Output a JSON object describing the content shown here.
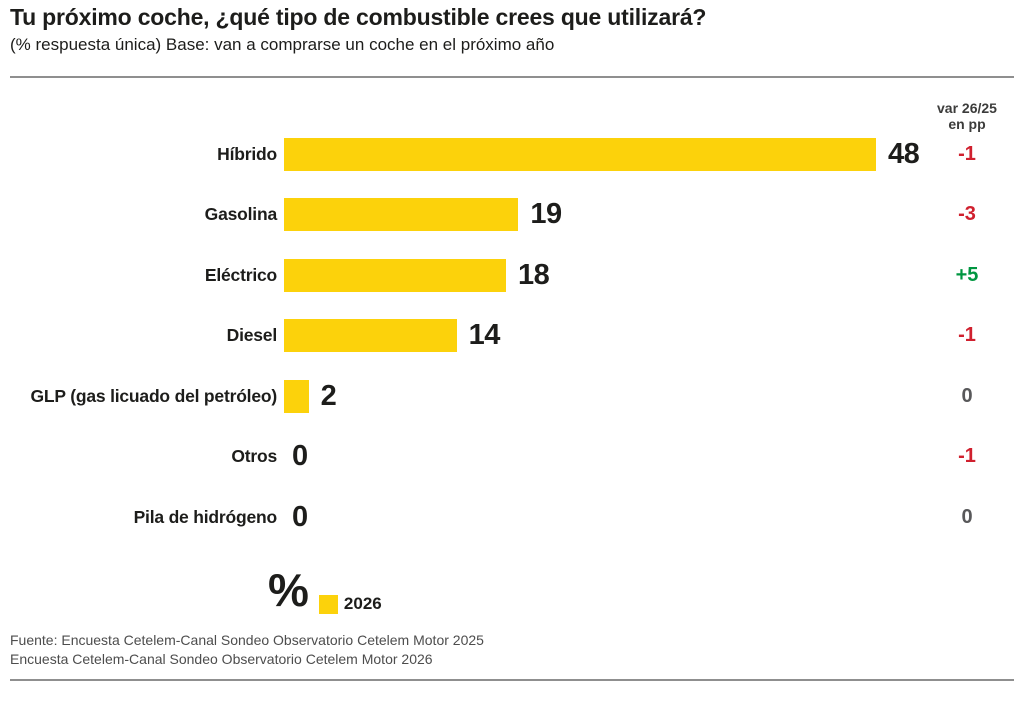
{
  "header": {
    "title": "Tu próximo coche, ¿qué tipo de combustible crees que utilizará?",
    "subtitle": "(% respuesta única) Base: van a comprarse un coche en el próximo año"
  },
  "var_header": {
    "line1": "var 26/25",
    "line2": "en pp"
  },
  "chart_data": {
    "type": "bar",
    "orientation": "horizontal",
    "title": "Tu próximo coche, ¿qué tipo de combustible crees que utilizará?",
    "unit": "%",
    "xlim": [
      0,
      48
    ],
    "categories": [
      "Híbrido",
      "Gasolina",
      "Eléctrico",
      "Diesel",
      "GLP (gas licuado del petróleo)",
      "Otros",
      "Pila de hidrógeno"
    ],
    "series": [
      {
        "name": "2026",
        "values": [
          48,
          19,
          18,
          14,
          2,
          0,
          0
        ]
      }
    ],
    "variation_column": {
      "header": "var 26/25 en pp",
      "values": [
        "-1",
        "-3",
        "+5",
        "-1",
        "0",
        "-1",
        "0"
      ]
    },
    "legend": {
      "symbol": "%",
      "label": "2026",
      "position": "bottom"
    },
    "grid": false
  },
  "colors": {
    "bar": "#fcd20b",
    "negative": "#d0202e",
    "positive": "#009640",
    "neutral": "#58585a"
  },
  "footer": {
    "source_line1": "Fuente: Encuesta Cetelem-Canal Sondeo Observatorio Cetelem Motor 2025",
    "source_line2": "Encuesta Cetelem-Canal Sondeo Observatorio Cetelem Motor 2026"
  }
}
